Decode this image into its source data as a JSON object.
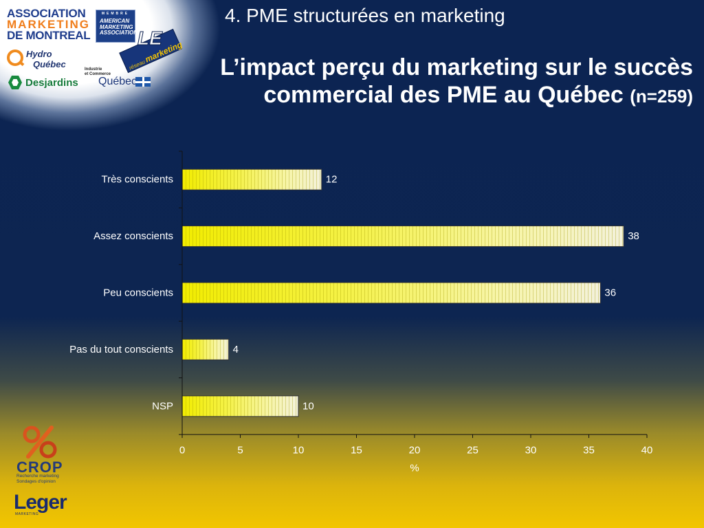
{
  "slide": {
    "section_title": "4. PME structurées en marketing"
  },
  "chart_data": {
    "type": "bar",
    "orientation": "horizontal",
    "title_lines": [
      "L’impact perçu du marketing sur le succès",
      "commercial des PME au Québec"
    ],
    "sample_note": "(n=259)",
    "categories": [
      "Très conscients",
      "Assez conscients",
      "Peu conscients",
      "Pas du tout conscients",
      "NSP"
    ],
    "values": [
      12,
      38,
      36,
      4,
      10
    ],
    "xlabel": "%",
    "ylabel": "",
    "xlim": [
      0,
      40
    ],
    "xticks": [
      0,
      5,
      10,
      15,
      20,
      25,
      30,
      35,
      40
    ],
    "data_labels": true,
    "grid": false,
    "legend": "none"
  },
  "colors": {
    "background_top": "#0c2452",
    "background_bottom": "#f2c600",
    "text": "#ffffff",
    "bar_fill_start": "#f1ec00",
    "bar_fill_end": "#f3f1dc",
    "bar_stroke": "#333333",
    "axis": "#111111"
  },
  "logos": {
    "amm": {
      "line1": "ASSOCIATION",
      "line2": "MARKETING",
      "line3": "DE MONTREAL"
    },
    "ama": {
      "line1": "MEMBRE",
      "line2": "AMERICAN",
      "line3": "MARKETING",
      "line4": "ASSOCIATION"
    },
    "reseau": {
      "big": "LE",
      "line1": "réseau",
      "line2": "marketing"
    },
    "hydro": {
      "line1": "Hydro",
      "line2": "Québec",
      "icon": "hydro-q-icon"
    },
    "mic": {
      "line1": "Industrie",
      "line2": "et Commerce",
      "name": "Québec",
      "icon": "quebec-flag-icon"
    },
    "desjardins": {
      "name": "Desjardins",
      "icon": "desjardins-hexagon-icon"
    },
    "crop": {
      "name": "CROP",
      "line1": "Recherche marketing",
      "line2": "Sondages d'opinion",
      "icon": "crop-percent-icon"
    },
    "leger": {
      "name": "Leger",
      "sub": "MARKETING"
    }
  }
}
